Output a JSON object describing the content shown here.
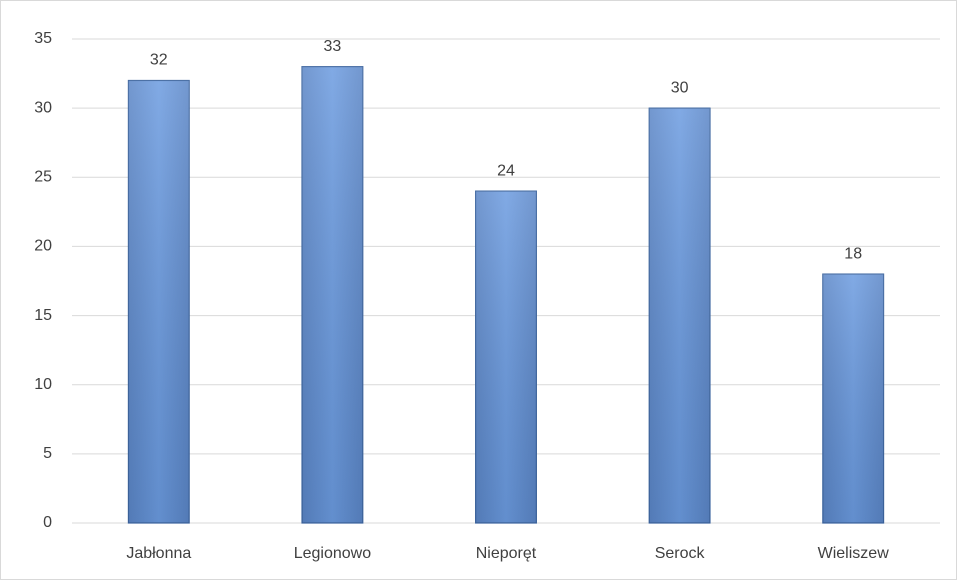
{
  "chart_data": {
    "type": "bar",
    "categories": [
      "Jabłonna",
      "Legionowo",
      "Nieporęt",
      "Serock",
      "Wieliszew"
    ],
    "values": [
      32,
      33,
      24,
      30,
      18
    ],
    "color": "#5f8fd4",
    "ylim": [
      0,
      35
    ],
    "yticks": [
      0,
      5,
      10,
      15,
      20,
      25,
      30,
      35
    ],
    "grid": true
  }
}
